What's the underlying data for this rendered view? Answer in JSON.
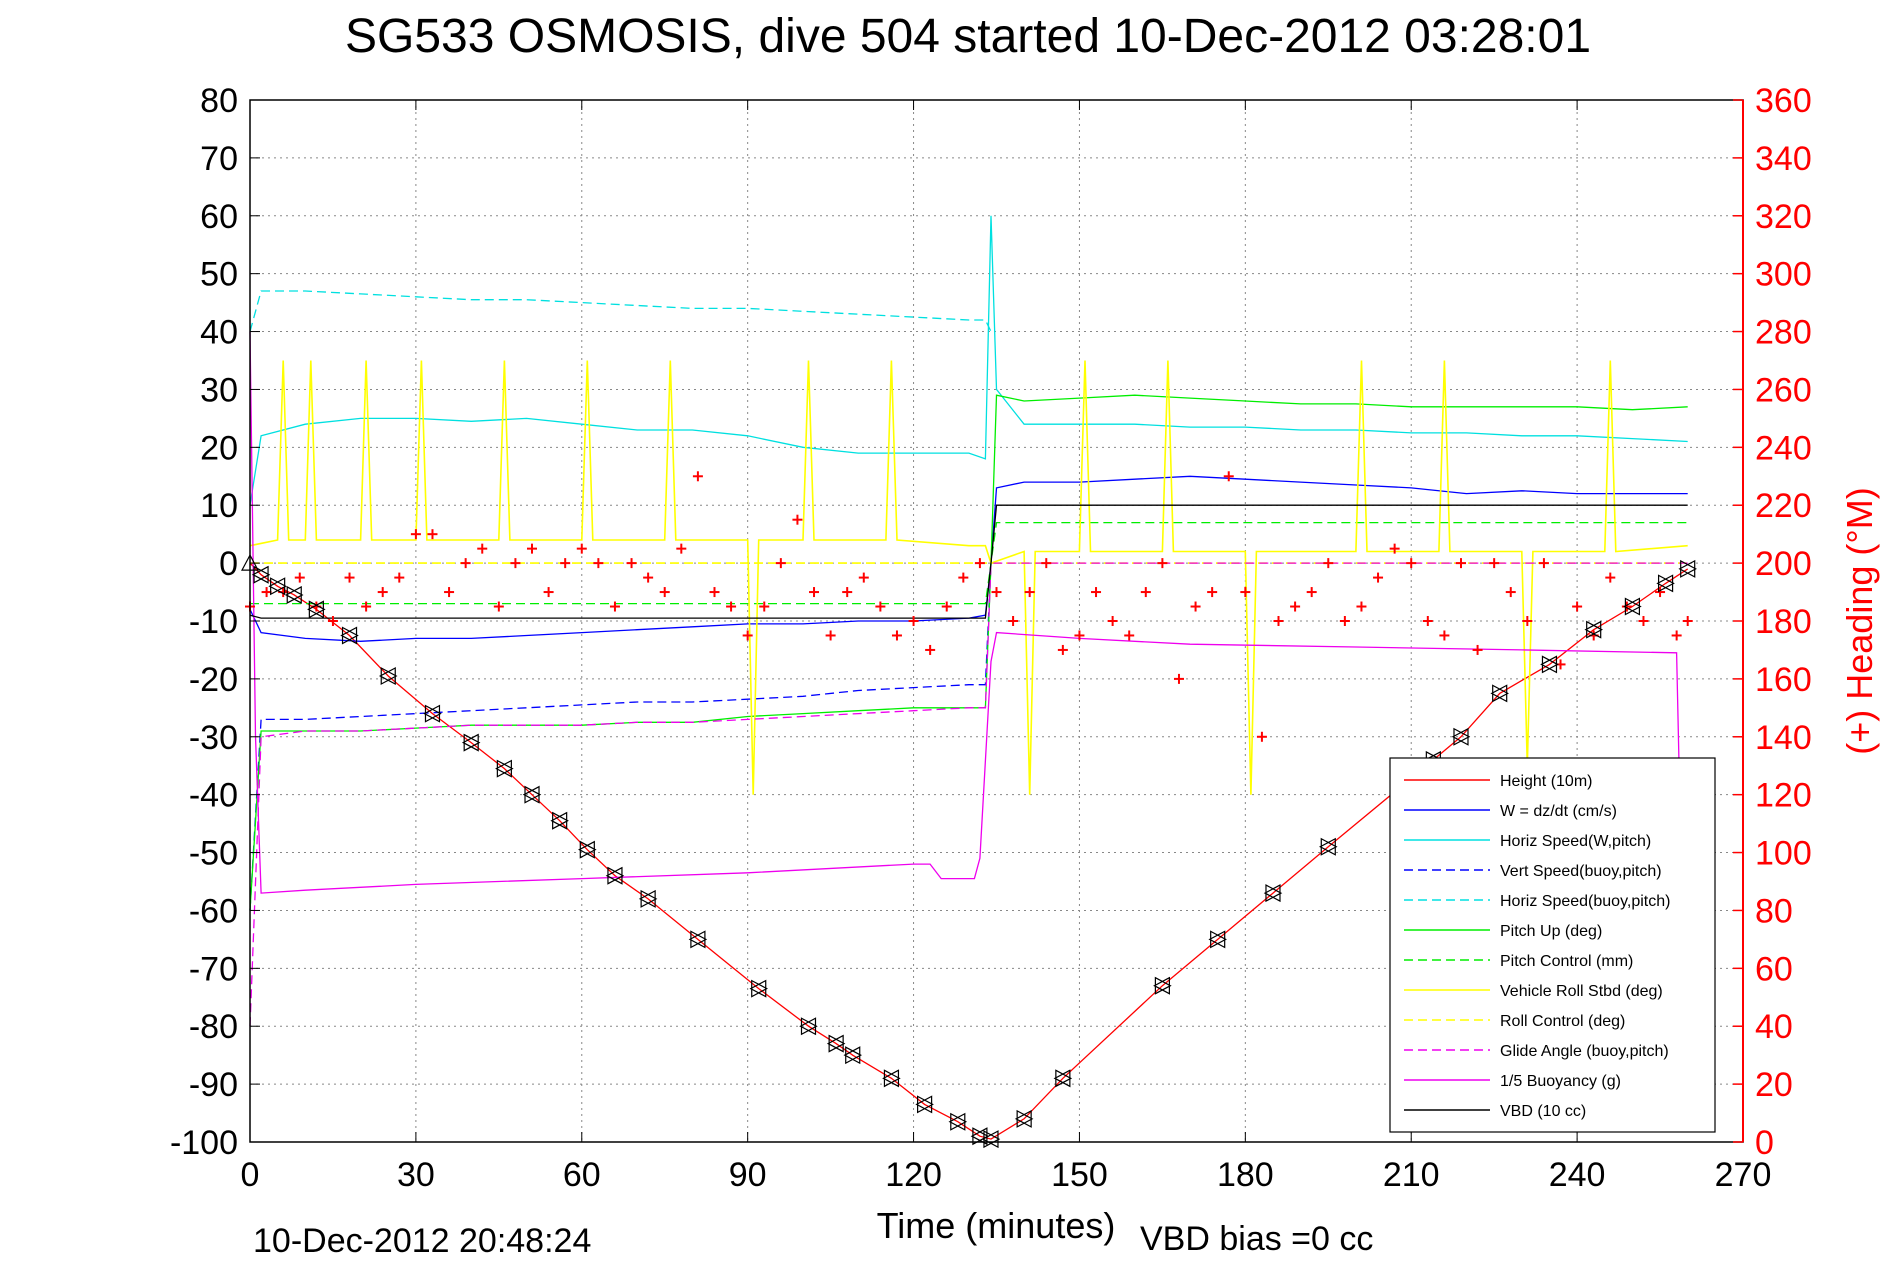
{
  "chart_data": {
    "type": "line",
    "title": "SG533 OSMOSIS, dive 504 started 10-Dec-2012 03:28:01",
    "xlabel": "Time (minutes)",
    "ylabel": "",
    "y2label": "(+) Heading (°M)",
    "footer_left": "10-Dec-2012 20:48:24",
    "footer_right": "VBD bias =0 cc",
    "xlim": [
      0,
      270
    ],
    "ylim": [
      -100,
      80
    ],
    "y2lim": [
      0,
      360
    ],
    "xticks": [
      0,
      30,
      60,
      90,
      120,
      150,
      180,
      210,
      240,
      270
    ],
    "yticks": [
      -100,
      -90,
      -80,
      -70,
      -60,
      -50,
      -40,
      -30,
      -20,
      -10,
      0,
      10,
      20,
      30,
      40,
      50,
      60,
      70,
      80
    ],
    "y2ticks": [
      0,
      20,
      40,
      60,
      80,
      100,
      120,
      140,
      160,
      180,
      200,
      220,
      240,
      260,
      280,
      300,
      320,
      340,
      360
    ],
    "grid": true,
    "legend_position": "bottom-right",
    "colors": {
      "axis": "#000000",
      "right_axis": "#ff0000",
      "grid": "#888888"
    },
    "series": [
      {
        "name": "Height (10m)",
        "color": "#ff0000",
        "dash": "solid",
        "x": [
          0,
          2,
          5,
          8,
          12,
          18,
          25,
          33,
          40,
          46,
          51,
          56,
          61,
          66,
          72,
          81,
          92,
          101,
          106,
          109,
          116,
          122,
          128,
          132,
          134,
          140,
          147,
          165,
          175,
          185,
          195,
          214,
          219,
          226,
          235,
          243,
          250,
          256,
          260
        ],
        "y": [
          0,
          -2,
          -4,
          -5.5,
          -8,
          -12.5,
          -19.5,
          -26,
          -31,
          -35.5,
          -40,
          -44.5,
          -49.5,
          -54,
          -58,
          -65,
          -73.5,
          -80,
          -83,
          -85,
          -89,
          -93.5,
          -96.5,
          -99,
          -99.5,
          -96,
          -89,
          -73,
          -65,
          -57,
          -49,
          -34,
          -30,
          -22.5,
          -17.5,
          -11.5,
          -7.5,
          -3.5,
          -1
        ]
      },
      {
        "name": "W = dz/dt (cm/s)",
        "color": "#0000ff",
        "dash": "solid",
        "x": [
          0,
          2,
          10,
          20,
          30,
          40,
          50,
          60,
          70,
          80,
          90,
          100,
          110,
          120,
          130,
          133,
          134,
          135,
          140,
          150,
          160,
          170,
          180,
          190,
          200,
          210,
          220,
          230,
          240,
          250,
          260
        ],
        "y": [
          -8,
          -12,
          -13,
          -13.5,
          -13,
          -13,
          -12.5,
          -12,
          -11.5,
          -11,
          -10.5,
          -10.5,
          -10,
          -10,
          -9.5,
          -9,
          0,
          13,
          14,
          14,
          14.5,
          15,
          14.5,
          14,
          13.5,
          13,
          12,
          12.5,
          12,
          12,
          12
        ]
      },
      {
        "name": "Horiz Speed(W,pitch)",
        "color": "#00e0e0",
        "dash": "solid",
        "x": [
          0,
          2,
          10,
          20,
          30,
          40,
          50,
          60,
          70,
          80,
          90,
          100,
          110,
          120,
          130,
          133,
          134,
          135,
          140,
          150,
          160,
          170,
          180,
          190,
          200,
          210,
          220,
          230,
          240,
          250,
          260
        ],
        "y": [
          10,
          22,
          24,
          25,
          25,
          24.5,
          25,
          24,
          23,
          23,
          22,
          20,
          19,
          19,
          19,
          18,
          60,
          30,
          24,
          24,
          24,
          23.5,
          23.5,
          23,
          23,
          22.5,
          22.5,
          22,
          22,
          21.5,
          21
        ]
      },
      {
        "name": "Vert Speed(buoy,pitch)",
        "color": "#0000ff",
        "dash": "dashed",
        "x": [
          0,
          2,
          10,
          20,
          30,
          40,
          50,
          60,
          70,
          80,
          90,
          100,
          110,
          120,
          130,
          133,
          134
        ],
        "y": [
          -60,
          -27,
          -27,
          -26.5,
          -26,
          -25.5,
          -25,
          -24.5,
          -24,
          -24,
          -23.5,
          -23,
          -22,
          -21.5,
          -21,
          -21,
          0
        ]
      },
      {
        "name": "Horiz Speed(buoy,pitch)",
        "color": "#00e0e0",
        "dash": "dashed",
        "x": [
          0,
          2,
          10,
          20,
          30,
          40,
          50,
          60,
          70,
          80,
          90,
          100,
          110,
          120,
          130,
          133,
          134
        ],
        "y": [
          40,
          47,
          47,
          46.5,
          46,
          45.5,
          45.5,
          45,
          44.5,
          44,
          44,
          43.5,
          43,
          42.5,
          42,
          42,
          40
        ]
      },
      {
        "name": "Pitch Up (deg)",
        "color": "#00ee00",
        "dash": "solid",
        "x": [
          0,
          2,
          10,
          20,
          30,
          40,
          50,
          60,
          70,
          80,
          90,
          100,
          110,
          120,
          130,
          133,
          134,
          135,
          140,
          150,
          160,
          170,
          180,
          190,
          200,
          210,
          220,
          230,
          240,
          250,
          260
        ],
        "y": [
          -60,
          -29,
          -29,
          -29,
          -28.5,
          -28,
          -28,
          -28,
          -27.5,
          -27.5,
          -26.5,
          -26,
          -25.5,
          -25,
          -25,
          -25,
          0,
          29,
          28,
          28.5,
          29,
          28.5,
          28,
          27.5,
          27.5,
          27,
          27,
          27,
          27,
          26.5,
          27
        ]
      },
      {
        "name": "Pitch Control (mm)",
        "color": "#00ee00",
        "dash": "dashed",
        "x": [
          0,
          2,
          133,
          134,
          135,
          260
        ],
        "y": [
          -7,
          -7,
          -7,
          0,
          7,
          7
        ]
      },
      {
        "name": "Vehicle Roll Stbd (deg)",
        "color": "#ffff00",
        "dash": "solid",
        "x": [
          0,
          5,
          6,
          7,
          10,
          11,
          12,
          20,
          21,
          22,
          30,
          31,
          32,
          45,
          46,
          47,
          60,
          61,
          62,
          75,
          76,
          77,
          90,
          91,
          92,
          100,
          101,
          102,
          115,
          116,
          117,
          130,
          133,
          134,
          140,
          141,
          142,
          150,
          151,
          152,
          165,
          166,
          167,
          180,
          181,
          182,
          200,
          201,
          202,
          215,
          216,
          217,
          230,
          231,
          232,
          245,
          246,
          247,
          260
        ],
        "y": [
          3,
          4,
          35,
          4,
          4,
          35,
          4,
          4,
          35,
          4,
          4,
          35,
          4,
          4,
          35,
          4,
          4,
          35,
          4,
          4,
          35,
          4,
          4,
          -40,
          4,
          4,
          35,
          4,
          4,
          35,
          4,
          3,
          3,
          0,
          2,
          -40,
          2,
          2,
          35,
          2,
          2,
          35,
          2,
          2,
          -40,
          2,
          2,
          35,
          2,
          2,
          35,
          2,
          2,
          -35,
          2,
          2,
          35,
          2,
          3
        ]
      },
      {
        "name": "Roll Control (deg)",
        "color": "#ffff00",
        "dash": "dashed",
        "x": [
          0,
          133,
          134,
          260
        ],
        "y": [
          0,
          0,
          0,
          0
        ]
      },
      {
        "name": "Glide Angle (buoy,pitch)",
        "color": "#ee00ee",
        "dash": "dashed",
        "x": [
          0,
          2,
          10,
          20,
          30,
          40,
          50,
          60,
          70,
          80,
          90,
          100,
          110,
          120,
          130,
          133,
          134,
          135,
          260
        ],
        "y": [
          -80,
          -30,
          -29,
          -29,
          -28.5,
          -28,
          -28,
          -28,
          -27.5,
          -27.5,
          -27,
          -26.5,
          -26,
          -25.5,
          -25,
          -25,
          0,
          0,
          0
        ]
      },
      {
        "name": "1/5 Buoyancy (g)",
        "color": "#ee00ee",
        "dash": "solid",
        "x": [
          0,
          1,
          2,
          10,
          30,
          60,
          90,
          120,
          123,
          125,
          131,
          132,
          134,
          135,
          150,
          170,
          200,
          230,
          258,
          259
        ],
        "y": [
          40,
          -30,
          -57,
          -56.5,
          -55.5,
          -54.5,
          -53.5,
          -52,
          -52,
          -54.5,
          -54.5,
          -51,
          -17,
          -12,
          -13,
          -14,
          -14.5,
          -15,
          -15.5,
          -60
        ]
      },
      {
        "name": "VBD (10 cc)",
        "color": "#000000",
        "dash": "solid",
        "x": [
          0,
          2,
          133,
          134,
          135,
          260
        ],
        "y": [
          -9,
          -9.5,
          -9.5,
          0,
          10,
          10
        ]
      }
    ],
    "heading": {
      "name": "Heading (°M)",
      "color": "#ff0000",
      "marker": "+",
      "axis": "right",
      "x": [
        0,
        3,
        6,
        9,
        12,
        15,
        18,
        21,
        24,
        27,
        30,
        33,
        36,
        39,
        42,
        45,
        48,
        51,
        54,
        57,
        60,
        63,
        66,
        69,
        72,
        75,
        78,
        81,
        84,
        87,
        90,
        93,
        96,
        99,
        102,
        105,
        108,
        111,
        114,
        117,
        120,
        123,
        126,
        129,
        132,
        135,
        138,
        141,
        144,
        147,
        150,
        153,
        156,
        159,
        162,
        165,
        168,
        171,
        174,
        177,
        180,
        183,
        186,
        189,
        192,
        195,
        198,
        201,
        204,
        207,
        210,
        213,
        216,
        219,
        222,
        225,
        228,
        231,
        234,
        237,
        240,
        243,
        246,
        249,
        252,
        255,
        258,
        260
      ],
      "y": [
        185,
        190,
        190,
        195,
        185,
        180,
        195,
        185,
        190,
        195,
        210,
        210,
        190,
        200,
        205,
        185,
        200,
        205,
        190,
        200,
        205,
        200,
        185,
        200,
        195,
        190,
        205,
        230,
        190,
        185,
        175,
        185,
        200,
        215,
        190,
        175,
        190,
        195,
        185,
        175,
        180,
        170,
        185,
        195,
        200,
        190,
        180,
        190,
        200,
        170,
        175,
        190,
        180,
        175,
        190,
        200,
        160,
        185,
        190,
        230,
        190,
        140,
        180,
        185,
        190,
        200,
        180,
        185,
        195,
        205,
        200,
        180,
        175,
        200,
        170,
        200,
        190,
        180,
        200,
        165,
        185,
        175,
        195,
        185,
        180,
        190,
        175,
        180
      ]
    }
  }
}
